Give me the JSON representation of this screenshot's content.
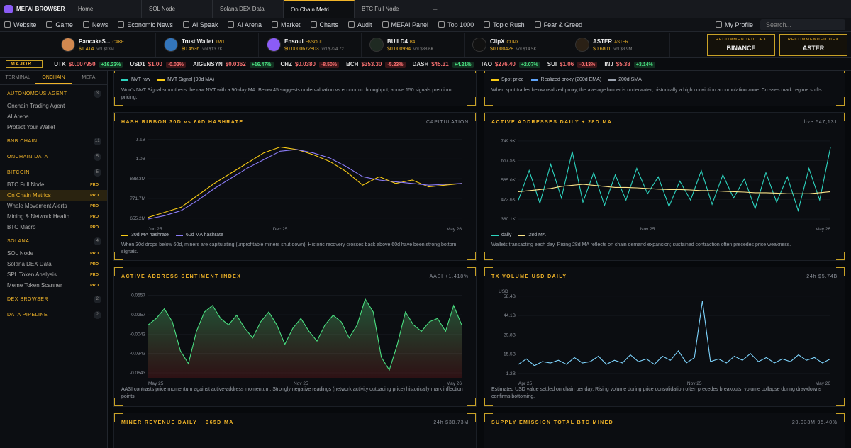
{
  "browser": {
    "brand": "MEFAI BROWSER",
    "tabs": [
      "Home",
      "SOL Node",
      "Solana DEX Data",
      "On Chain Metri...",
      "BTC Full Node"
    ],
    "active_tab": 3
  },
  "nav": {
    "items": [
      "Website",
      "Game",
      "News",
      "Economic News",
      "AI Speak",
      "AI Arena",
      "Market",
      "Charts",
      "Audit",
      "MEFAI Panel",
      "Top 1000",
      "Topic Rush",
      "Fear & Greed"
    ],
    "profile": "My Profile",
    "search": "Search..."
  },
  "cards": [
    {
      "name": "PancakeS...",
      "symbol": "CAKE",
      "price": "$1.414",
      "vol": "vol $13M",
      "color": "#d1884f"
    },
    {
      "name": "Trust Wallet",
      "symbol": "TWT",
      "price": "$0.4536",
      "vol": "vol $13.7K",
      "color": "#3375bb"
    },
    {
      "name": "Ensoul",
      "symbol": "ENSOUL",
      "price": "$0.0000672803",
      "vol": "vol $724.72",
      "color": "#8b5cf6"
    },
    {
      "name": "BUILD4",
      "symbol": "B4",
      "price": "$0.000994",
      "vol": "vol $38.6K",
      "color": "#1f2a22"
    },
    {
      "name": "ClipX",
      "symbol": "CLIPX",
      "price": "$0.000428",
      "vol": "vol $14.5K",
      "color": "#111"
    },
    {
      "name": "ASTER",
      "symbol": "ASTER",
      "price": "$0.6801",
      "vol": "vol $3.9M",
      "color": "#2a2015"
    }
  ],
  "recommended": [
    {
      "heading": "RECOMMENDED CEX",
      "name": "BINANCE"
    },
    {
      "heading": "RECOMMENDED DEX",
      "name": "ASTER"
    }
  ],
  "ticker": {
    "group": "MAJOR",
    "items": [
      {
        "symbol": "UTK",
        "price": "$0.007950",
        "change": "+16.23%"
      },
      {
        "symbol": "USD1",
        "price": "$1.00",
        "change": "-0.02%"
      },
      {
        "symbol": "AIGENSYN",
        "price": "$0.0362",
        "change": "+16.47%"
      },
      {
        "symbol": "CHZ",
        "price": "$0.0380",
        "change": "-8.50%"
      },
      {
        "symbol": "BCH",
        "price": "$353.30",
        "change": "-5.23%"
      },
      {
        "symbol": "DASH",
        "price": "$45.31",
        "change": "+4.21%"
      },
      {
        "symbol": "TAO",
        "price": "$276.40",
        "change": "+2.07%"
      },
      {
        "symbol": "SUI",
        "price": "$1.06",
        "change": "-0.13%"
      },
      {
        "symbol": "INJ",
        "price": "$5.38",
        "change": "+3.14%"
      }
    ]
  },
  "sidebar": {
    "tabs": [
      "TERMINAL",
      "ONCHAIN",
      "MEFAI"
    ],
    "active_tab": 1,
    "sections": [
      {
        "name": "AUTONOMOUS AGENT",
        "count": 3,
        "items": [
          {
            "label": "Onchain Trading Agent"
          },
          {
            "label": "AI Arena"
          },
          {
            "label": "Protect Your Wallet"
          }
        ]
      },
      {
        "name": "BNB CHAIN",
        "count": 11,
        "items": []
      },
      {
        "name": "ONCHAIN DATA",
        "count": 5,
        "items": []
      },
      {
        "name": "BITCOIN",
        "count": 5,
        "items": [
          {
            "label": "BTC Full Node",
            "badge": "PRO"
          },
          {
            "label": "On Chain Metrics",
            "badge": "PRO",
            "active": true
          },
          {
            "label": "Whale Movement Alerts",
            "badge": "PRO"
          },
          {
            "label": "Mining & Network Health",
            "badge": "PRO"
          },
          {
            "label": "BTC Macro",
            "badge": "PRO"
          }
        ]
      },
      {
        "name": "SOLANA",
        "count": 4,
        "items": [
          {
            "label": "SOL Node",
            "badge": "PRO"
          },
          {
            "label": "Solana DEX Data",
            "badge": "PRO"
          },
          {
            "label": "SPL Token Analysis",
            "badge": "PRO"
          },
          {
            "label": "Meme Token Scanner",
            "badge": "PRO"
          }
        ]
      },
      {
        "name": "DEX BROWSER",
        "count": 2,
        "items": []
      },
      {
        "name": "DATA PIPELINE",
        "count": 2,
        "items": []
      }
    ]
  },
  "top_panels": [
    {
      "legend": [
        {
          "name": "NVT raw",
          "color": "#2dd4bf"
        },
        {
          "name": "NVT Signal (90d MA)",
          "color": "#facc15"
        }
      ],
      "description": "Woo's NVT Signal smoothens the raw NVT with a 90-day MA. Below 45 suggests undervaluation vs economic throughput, above 150 signals premium pricing."
    },
    {
      "legend": [
        {
          "name": "Spot price",
          "color": "#facc15"
        },
        {
          "name": "Realized proxy (200d EMA)",
          "color": "#60a5fa"
        },
        {
          "name": "200d SMA",
          "color": "#9ca3af",
          "dashed": true
        }
      ],
      "description": "When spot trades below realized proxy, the average holder is underwater, historically a high conviction accumulation zone. Crosses mark regime shifts."
    }
  ],
  "panels": [
    {
      "title": "HASH RIBBON 30D vs 60D HASHRATE",
      "tag": "CAPITULATION",
      "description": "When 30d drops below 60d, miners are capitulating (unprofitable miners shut down). Historic recovery crosses back above 60d have been strong bottom signals.",
      "chart": {
        "type": "line",
        "categories": [
          "Jun 25",
          null,
          null,
          null,
          null,
          null,
          null,
          null,
          "Dec 25",
          null,
          null,
          null,
          null,
          null,
          null,
          null,
          null,
          null,
          null,
          "May 26"
        ],
        "series": [
          {
            "name": "30d MA hashrate",
            "color": "#facc15",
            "values": [
              660000000,
              690000000,
              720000000,
              790000000,
              860000000,
              920000000,
              980000000,
              1040000000,
              1075000000,
              1060000000,
              1030000000,
              990000000,
              930000000,
              850000000,
              900000000,
              860000000,
              880000000,
              840000000,
              850000000,
              860000000
            ]
          },
          {
            "name": "60d MA hashrate",
            "color": "#8b7cf6",
            "values": [
              650000000,
              670000000,
              700000000,
              760000000,
              830000000,
              890000000,
              950000000,
              1000000000,
              1050000000,
              1060000000,
              1040000000,
              1010000000,
              960000000,
              900000000,
              880000000,
              870000000,
              860000000,
              850000000,
              855000000,
              860000000
            ]
          }
        ],
        "ylim": [
          625000000,
          1135000000
        ],
        "yticks": [
          {
            "value": 655200000,
            "label": "655.2M"
          },
          {
            "value": 771700000,
            "label": "771.7M"
          },
          {
            "value": 888300000,
            "label": "888.3M"
          },
          {
            "value": 1004800000,
            "label": "1.0B"
          },
          {
            "value": 1121400000,
            "label": "1.1B"
          }
        ],
        "grid": true
      }
    },
    {
      "title": "ACTIVE ADDRESSES DAILY + 28D MA",
      "tag": "live 547,131",
      "description": "Wallets transacting each day. Rising 28d MA reflects on chain demand expansion; sustained contraction often precedes price weakness.",
      "chart": {
        "type": "line",
        "categories": [
          null,
          null,
          null,
          null,
          null,
          null,
          null,
          null,
          null,
          null,
          null,
          null,
          "Nov 25",
          null,
          null,
          null,
          null,
          null,
          null,
          null,
          null,
          null,
          null,
          null,
          null,
          null,
          null,
          null,
          null,
          "May 26"
        ],
        "series": [
          {
            "name": "daily",
            "color": "#2dd4bf",
            "values": [
              470000,
              610000,
              455000,
              640000,
              480000,
              700000,
              460000,
              600000,
              445000,
              590000,
              470000,
              620000,
              500000,
              580000,
              440000,
              560000,
              470000,
              610000,
              450000,
              590000,
              480000,
              570000,
              430000,
              600000,
              460000,
              580000,
              420000,
              620000,
              470000,
              720000
            ]
          },
          {
            "name": "28d MA",
            "color": "#fde68a",
            "values": [
              510000,
              515000,
              520000,
              525000,
              535000,
              540000,
              545000,
              540000,
              535000,
              530000,
              530000,
              528000,
              525000,
              522000,
              520000,
              520000,
              518000,
              515000,
              515000,
              512000,
              510000,
              508000,
              505000,
              505000,
              503000,
              500000,
              500000,
              500000,
              505000,
              510000
            ]
          }
        ],
        "ylim": [
          360000,
          770000
        ],
        "yticks": [
          {
            "value": 380100,
            "label": "380.1K"
          },
          {
            "value": 472600,
            "label": "472.6K"
          },
          {
            "value": 565000,
            "label": "565.0K"
          },
          {
            "value": 657500,
            "label": "657.5K"
          },
          {
            "value": 749900,
            "label": "749.9K"
          }
        ],
        "grid": true
      }
    },
    {
      "title": "ACTIVE ADDRESS SENTIMENT INDEX",
      "tag": "AASI +1.418%",
      "description": "AASI contrasts price momentum against active-address momentum. Strongly negative readings (network activity outpacing price) historically mark inflection points.",
      "chart": {
        "type": "area",
        "categories": [
          "May 25",
          null,
          null,
          null,
          null,
          null,
          null,
          null,
          null,
          null,
          null,
          null,
          null,
          null,
          null,
          null,
          null,
          null,
          null,
          "Nov 25",
          null,
          null,
          null,
          null,
          null,
          null,
          null,
          null,
          null,
          null,
          null,
          null,
          null,
          null,
          null,
          null,
          null,
          null,
          null,
          "May 26"
        ],
        "series": [
          {
            "color": "#4ade80",
            "values": [
              0.01,
              0.02,
              0.035,
              0.015,
              -0.03,
              -0.05,
              0,
              0.03,
              0.04,
              0.02,
              0.01,
              0.025,
              0.005,
              -0.01,
              0.015,
              0.03,
              0.01,
              -0.02,
              0.005,
              0.02,
              0,
              -0.015,
              0.01,
              0.025,
              0.015,
              -0.01,
              0.01,
              0.05,
              0.03,
              -0.04,
              -0.06,
              -0.02,
              0.03,
              0.01,
              0,
              0.015,
              0.02,
              0,
              0.04,
              0.01
            ]
          }
        ],
        "ylim": [
          -0.072,
          0.062
        ],
        "yticks": [
          -0.0643,
          -0.0343,
          -0.0043,
          0.0257,
          0.0557
        ],
        "grid": true
      }
    },
    {
      "title": "TX VOLUME USD DAILY",
      "tag": "24h $5.74B",
      "description": "Estimated USD value settled on chain per day. Rising volume during price consolidation often precedes breakouts; volume collapse during drawdowns confirms bottoming.",
      "chart": {
        "type": "line",
        "y_unit": "USD",
        "categories": [
          "Apr 25",
          null,
          null,
          null,
          null,
          null,
          null,
          null,
          null,
          null,
          null,
          null,
          null,
          null,
          null,
          null,
          null,
          null,
          null,
          null,
          null,
          null,
          "Nov 25",
          null,
          null,
          null,
          null,
          null,
          null,
          null,
          null,
          null,
          null,
          null,
          null,
          null,
          null,
          null,
          null,
          "May 26"
        ],
        "series": [
          {
            "color": "#7dd3fc",
            "values": [
              8000000000,
              12000000000,
              7000000000,
              10000000000,
              9000000000,
              11000000000,
              8000000000,
              13000000000,
              9000000000,
              10000000000,
              14000000000,
              8000000000,
              11000000000,
              9000000000,
              15000000000,
              10000000000,
              12000000000,
              8000000000,
              14000000000,
              11000000000,
              18000000000,
              9000000000,
              13000000000,
              55000000000,
              10000000000,
              12000000000,
              9000000000,
              14000000000,
              11000000000,
              16000000000,
              10000000000,
              13000000000,
              9000000000,
              12000000000,
              10000000000,
              15000000000,
              11000000000,
              13000000000,
              9000000000,
              12000000000
            ]
          }
        ],
        "ylim": [
          -2000000000,
          62000000000
        ],
        "yticks": [
          {
            "value": 1200000000,
            "label": "1.2B"
          },
          {
            "value": 15500000000,
            "label": "15.5B"
          },
          {
            "value": 29800000000,
            "label": "29.8B"
          },
          {
            "value": 44100000000,
            "label": "44.1B"
          },
          {
            "value": 58400000000,
            "label": "58.4B"
          }
        ],
        "grid": true
      }
    },
    {
      "title": "MINER REVENUE DAILY + 365D MA",
      "tag": "24h $38.73M"
    },
    {
      "title": "SUPPLY EMISSION TOTAL BTC MINED",
      "tag": "20.033M 95.40%"
    }
  ]
}
